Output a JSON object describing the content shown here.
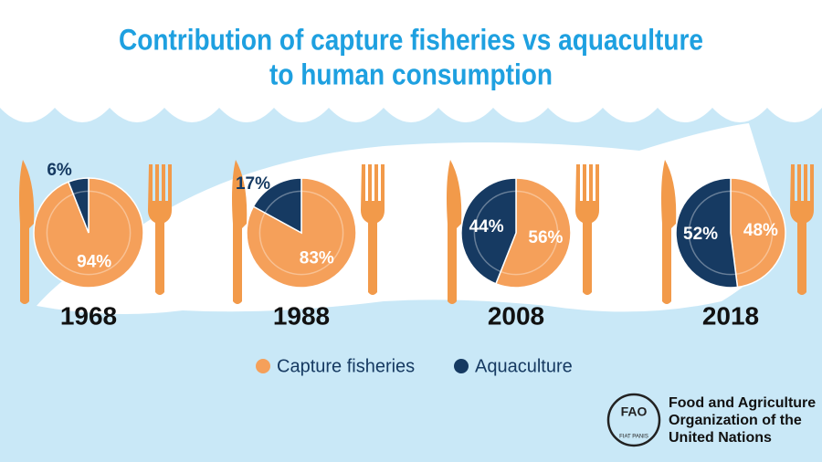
{
  "title": [
    "Contribution of capture fisheries vs aquaculture",
    "to human consumption"
  ],
  "chart_data": [
    {
      "type": "pie",
      "title": "1968",
      "categories": [
        "Capture fisheries",
        "Aquaculture"
      ],
      "values": [
        94,
        6
      ],
      "value_labels": [
        "94%",
        "6%"
      ],
      "colors": [
        "#f5a05a",
        "#163a62"
      ]
    },
    {
      "type": "pie",
      "title": "1988",
      "categories": [
        "Capture fisheries",
        "Aquaculture"
      ],
      "values": [
        83,
        17
      ],
      "value_labels": [
        "83%",
        "17%"
      ],
      "colors": [
        "#f5a05a",
        "#163a62"
      ]
    },
    {
      "type": "pie",
      "title": "2008",
      "categories": [
        "Capture fisheries",
        "Aquaculture"
      ],
      "values": [
        56,
        44
      ],
      "value_labels": [
        "56%",
        "44%"
      ],
      "colors": [
        "#f5a05a",
        "#163a62"
      ]
    },
    {
      "type": "pie",
      "title": "2018",
      "categories": [
        "Capture fisheries",
        "Aquaculture"
      ],
      "values": [
        48,
        52
      ],
      "value_labels": [
        "48%",
        "52%"
      ],
      "colors": [
        "#f5a05a",
        "#163a62"
      ]
    }
  ],
  "logo": {
    "name": "FAO",
    "motto": "FIAT PANIS"
  },
  "organization": [
    "Food and Agriculture",
    "Organization of the",
    "United Nations"
  ]
}
